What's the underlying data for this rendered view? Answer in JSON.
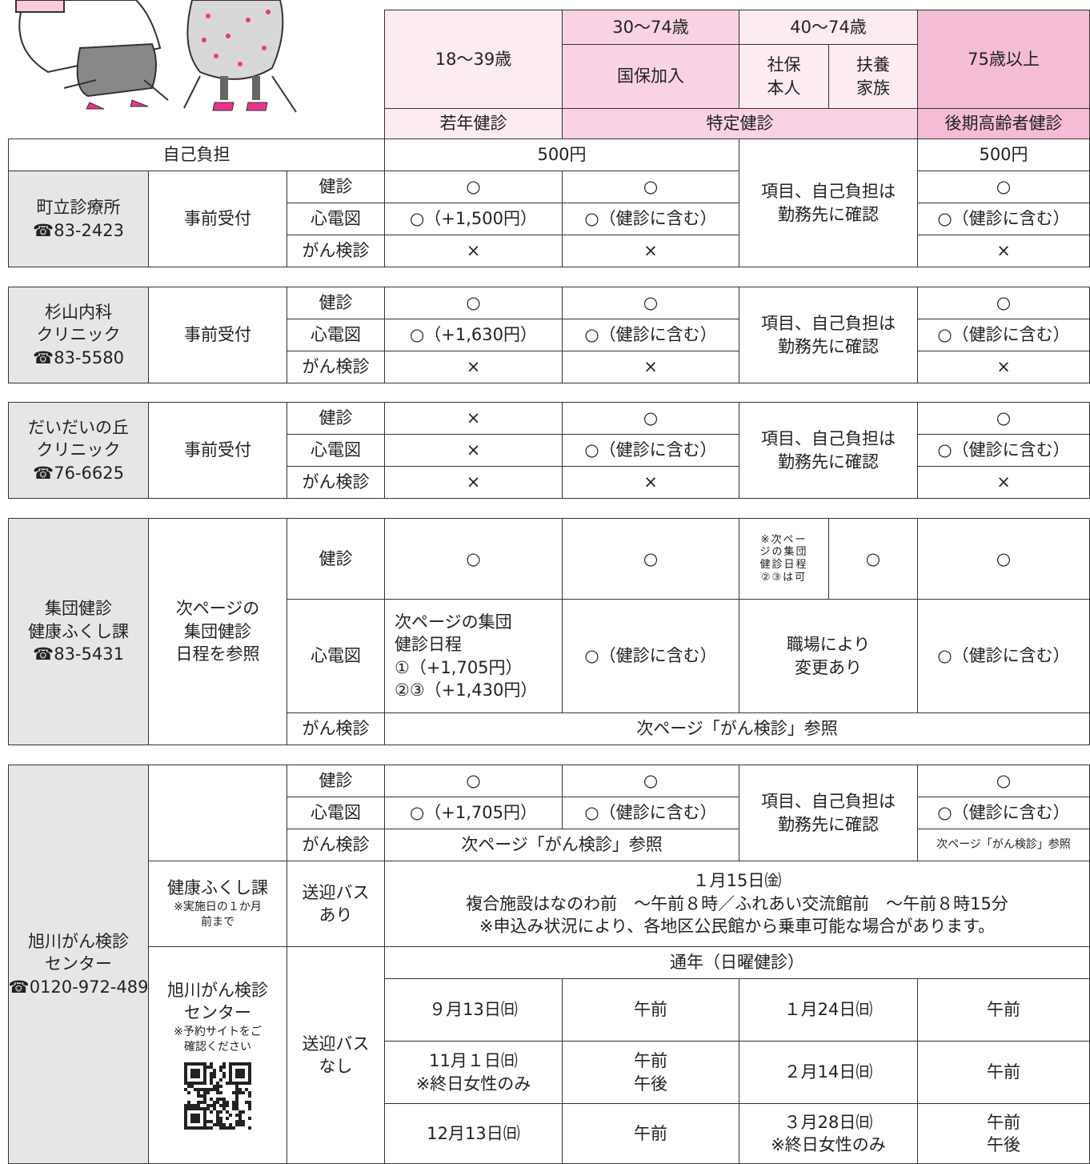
{
  "header": {
    "age_18_39": "18〜39歳",
    "age_30_74": "30〜74歳",
    "kokuho": "国保加入",
    "age_40_74": "40〜74歳",
    "shaho": [
      "社保",
      "本人"
    ],
    "fuyo": [
      "扶養",
      "家族"
    ],
    "age_75": "75歳以上",
    "programs": [
      "若年健診",
      "特定健診",
      "後期高齢者健診"
    ]
  },
  "fee": {
    "label": "自己負担",
    "young_tokutei": "500円",
    "elder": "500円"
  },
  "clinics": [
    {
      "name": [
        "町立診療所",
        "☎83-2423"
      ],
      "reception": "事前受付",
      "employer": [
        "項目、自己負担は",
        "勤務先に確認"
      ],
      "rows": [
        [
          "健診",
          "○",
          "○",
          "○"
        ],
        [
          "心電図",
          "○（+1,500円）",
          "○（健診に含む）",
          "○（健診に含む）"
        ],
        [
          "がん検診",
          "×",
          "×",
          "×"
        ]
      ]
    },
    {
      "name": [
        "杉山内科",
        "クリニック",
        "☎83-5580"
      ],
      "reception": "事前受付",
      "employer": [
        "項目、自己負担は",
        "勤務先に確認"
      ],
      "rows": [
        [
          "健診",
          "○",
          "○",
          "○"
        ],
        [
          "心電図",
          "○（+1,630円）",
          "○（健診に含む）",
          "○（健診に含む）"
        ],
        [
          "がん検診",
          "×",
          "×",
          "×"
        ]
      ]
    },
    {
      "name": [
        "だいだいの丘",
        "クリニック",
        "☎76-6625"
      ],
      "reception": "事前受付",
      "employer": [
        "項目、自己負担は",
        "勤務先に確認"
      ],
      "rows": [
        [
          "健診",
          "×",
          "○",
          "○"
        ],
        [
          "心電図",
          "×",
          "○（健診に含む）",
          "○（健診に含む）"
        ],
        [
          "がん検診",
          "×",
          "×",
          "×"
        ]
      ]
    }
  ],
  "group": {
    "name": [
      "集団健診",
      "健康ふくし課",
      "☎83-5431"
    ],
    "reception": [
      "次ページの",
      "集団健診",
      "日程を参照"
    ],
    "kenshin": {
      "label": "健診",
      "young": "○",
      "kokuho": "○",
      "shaho": [
        "※次ペー",
        "ジの集団",
        "健診日程",
        "②③は可"
      ],
      "fuyo": "○",
      "elder": "○"
    },
    "ecg": {
      "label": "心電図",
      "young": [
        "次ページの集団",
        "健診日程",
        "①（+1,705円）",
        "②③（+1,430円）"
      ],
      "kokuho": "○（健診に含む）",
      "employer": [
        "職場により",
        "変更あり"
      ],
      "elder": "○（健診に含む）"
    },
    "cancer": {
      "label": "がん検診",
      "note": "次ページ「がん検診」参照"
    }
  },
  "center": {
    "name": [
      "旭川がん検診",
      "センター",
      "☎0120-972-489"
    ],
    "employer": [
      "項目、自己負担は",
      "勤務先に確認"
    ],
    "rows": [
      [
        "健診",
        "○",
        "○",
        "○"
      ],
      [
        "心電図",
        "○（+1,705円）",
        "○（健診に含む）",
        "○（健診に含む）"
      ]
    ],
    "cancer": {
      "label": "がん検診",
      "note": "次ページ「がん検診」参照",
      "elder": "次ページ「がん検診」参照"
    },
    "bus_with": {
      "org": "健康ふくし課",
      "org_note": [
        "※実施日の１か月",
        "前まで"
      ],
      "bus": [
        "送迎バス",
        "あり"
      ],
      "info": [
        "１月15日㈮",
        "複合施設はなのわ前　〜午前８時／ふれあい交流館前　〜午前８時15分",
        "※申込み状況により、各地区公民館から乗車可能な場合があります。"
      ]
    },
    "bus_without": {
      "org": [
        "旭川がん検診",
        "センター"
      ],
      "org_note": [
        "※予約サイトをご",
        "確認ください"
      ],
      "bus": [
        "送迎バス",
        "なし"
      ],
      "title": "通年（日曜健診）",
      "schedule": [
        [
          [
            "９月13日㈰"
          ],
          [
            "午前"
          ],
          [
            "１月24日㈰"
          ],
          [
            "午前"
          ]
        ],
        [
          [
            "11月１日㈰",
            "※終日女性のみ"
          ],
          [
            "午前",
            "午後"
          ],
          [
            "２月14日㈰"
          ],
          [
            "午前"
          ]
        ],
        [
          [
            "12月13日㈰"
          ],
          [
            "午前"
          ],
          [
            "３月28日㈰",
            "※終日女性のみ"
          ],
          [
            "午前",
            "午後"
          ]
        ]
      ]
    }
  }
}
